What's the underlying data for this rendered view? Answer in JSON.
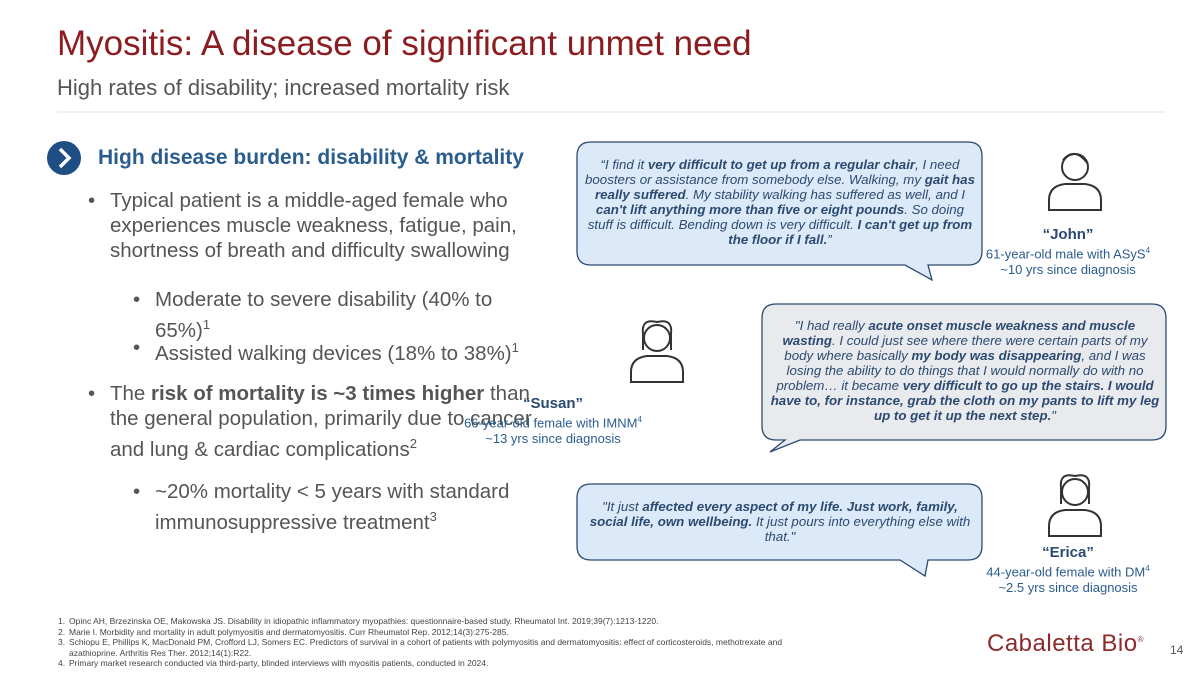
{
  "header": {
    "title": "Myositis: A disease of significant unmet need",
    "subtitle": "High rates of disability; increased mortality risk"
  },
  "section": {
    "heading": "High disease burden: disability & mortality"
  },
  "bullets": [
    {
      "level": 1,
      "runs": [
        {
          "text": "Typical patient is a middle-aged female who experiences muscle weakness, fatigue, pain, shortness of breath and difficulty swallowing"
        }
      ]
    },
    {
      "level": 2,
      "runs": [
        {
          "text": "Moderate to severe disability (40% to 65%)"
        },
        {
          "sup": "1"
        }
      ]
    },
    {
      "level": 2,
      "runs": [
        {
          "text": "Assisted walking devices (18% to 38%)"
        },
        {
          "sup": "1"
        }
      ]
    },
    {
      "level": 1,
      "runs": [
        {
          "text": "The "
        },
        {
          "bold": "risk of mortality is ~3 times higher"
        },
        {
          "text": " than the general population, primarily due to cancer and lung & cardiac complications"
        },
        {
          "sup": "2"
        }
      ]
    },
    {
      "level": 2,
      "runs": [
        {
          "text": "~20% mortality < 5 years with standard immunosuppressive treatment"
        },
        {
          "sup": "3"
        }
      ]
    }
  ],
  "quotes": [
    {
      "runs": [
        {
          "text": "“I find it "
        },
        {
          "bold": "very difficult to get up from a regular chair"
        },
        {
          "text": ", I need boosters or assistance from somebody else. Walking, my "
        },
        {
          "bold": "gait has really suffered"
        },
        {
          "text": ". My stability walking has suffered as well, and I "
        },
        {
          "bold": "can't lift anything more than five or eight pounds"
        },
        {
          "text": ". So doing stuff is difficult. Bending down is very difficult. "
        },
        {
          "bold": "I can't get up from the floor if I fall."
        },
        {
          "text": "”"
        }
      ]
    },
    {
      "runs": [
        {
          "text": "\"I had really "
        },
        {
          "bold": "acute onset muscle weakness and muscle wasting"
        },
        {
          "text": ". I could just see where there were certain parts of my body where basically "
        },
        {
          "bold": "my body was disappearing"
        },
        {
          "text": ", and I was losing the ability to do things that I would normally do with no problem… it became "
        },
        {
          "bold": "very difficult to go up the stairs. I would have to, for instance, grab the cloth on my pants to lift my leg up to get it up the next step."
        },
        {
          "text": "\""
        }
      ]
    },
    {
      "runs": [
        {
          "text": "\"It just "
        },
        {
          "bold": "affected every aspect of my life. Just work, family, social life, own wellbeing."
        },
        {
          "text": " It just pours into everything else with that.\""
        }
      ]
    }
  ],
  "persons": [
    {
      "name": "“John”",
      "description": [
        {
          "text": "61-year-old male with ASyS"
        },
        {
          "sup": "4"
        }
      ],
      "since": "~10 yrs since diagnosis"
    },
    {
      "name": "“Susan”",
      "description": [
        {
          "text": "66-year-old female with IMNM"
        },
        {
          "sup": "4"
        }
      ],
      "since": "~13 yrs since diagnosis"
    },
    {
      "name": "“Erica”",
      "description": [
        {
          "text": "44-year-old female with DM"
        },
        {
          "sup": "4"
        }
      ],
      "since": "~2.5 yrs since diagnosis"
    }
  ],
  "footnotes": [
    {
      "number": "1.",
      "text": "Opinc AH, Brzezinska OE, Makowska JS. Disability in idiopathic inflammatory myopathies: questionnaire-based study. Rheumatol Int. 2019;39(7):1213-1220."
    },
    {
      "number": "2.",
      "text": "Marie I. Morbidity and mortality in adult polymyositis and dermatomyositis. Curr Rheumatol Rep. 2012;14(3):275-285."
    },
    {
      "number": "3.",
      "text": "Schiopu E, Phillips K, MacDonald PM, Crofford LJ, Somers EC. Predictors of survival in a cohort of patients with polymyositis and dermatomyositis: effect of corticosteroids, methotrexate and azathioprine. Arthritis Res Ther. 2012;14(1):R22."
    },
    {
      "number": "4.",
      "text": "Primary market research conducted via third-party, blinded interviews with myositis patients, conducted in 2024."
    }
  ],
  "footer": {
    "logo": "Cabaletta Bio",
    "trademark": "®",
    "page": "14"
  }
}
